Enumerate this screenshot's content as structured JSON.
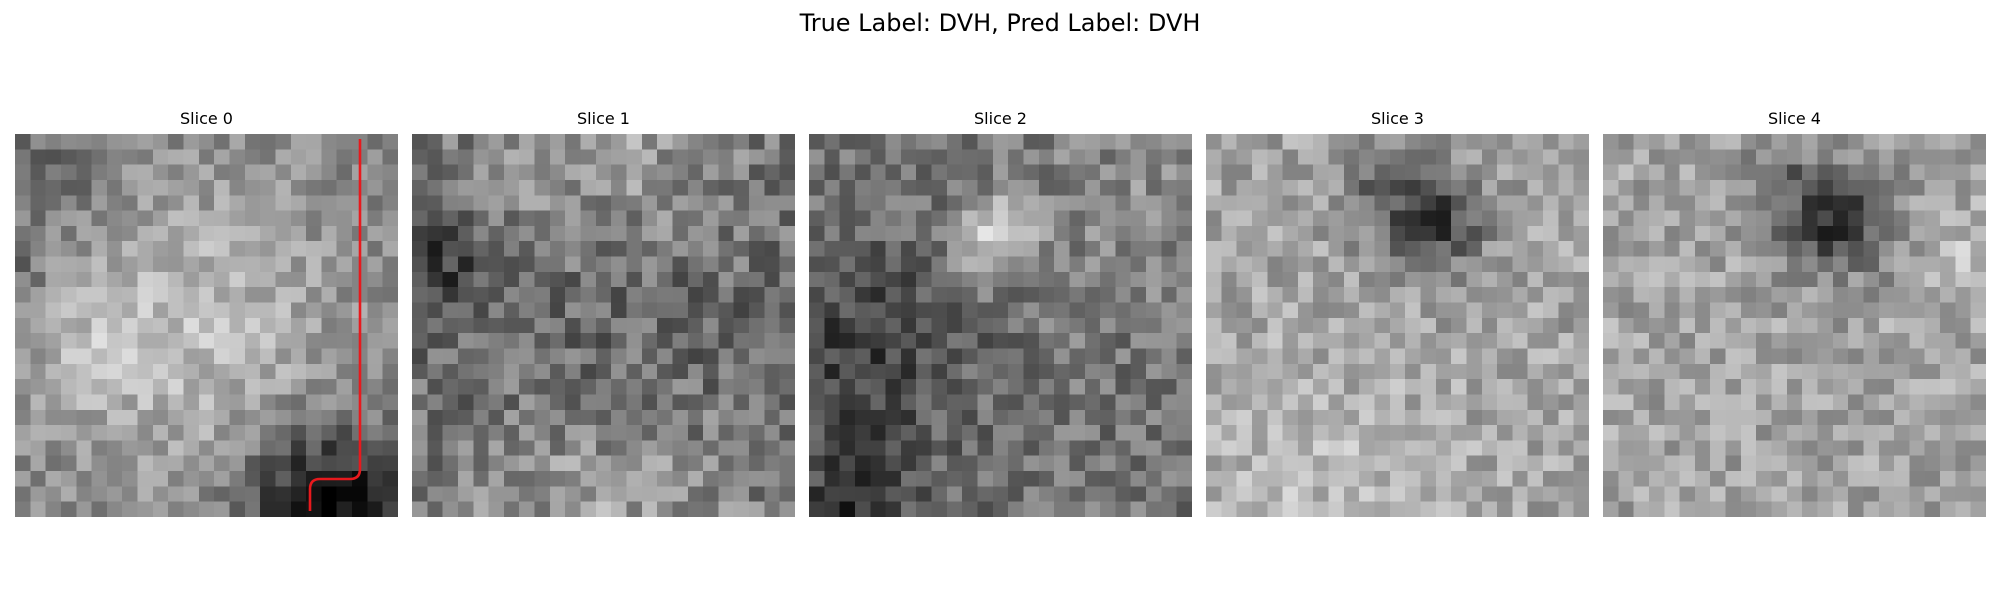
{
  "figure": {
    "title": "True Label: DVH, Pred Label: DVH"
  },
  "slices": [
    {
      "title": "Slice 0",
      "has_contour": true,
      "contour_color": "#e8191d"
    },
    {
      "title": "Slice 1",
      "has_contour": false
    },
    {
      "title": "Slice 2",
      "has_contour": false
    },
    {
      "title": "Slice 3",
      "has_contour": false
    },
    {
      "title": "Slice 4",
      "has_contour": false
    }
  ],
  "image_grid": {
    "pixels_per_side": 25,
    "colormap": "grayscale"
  }
}
